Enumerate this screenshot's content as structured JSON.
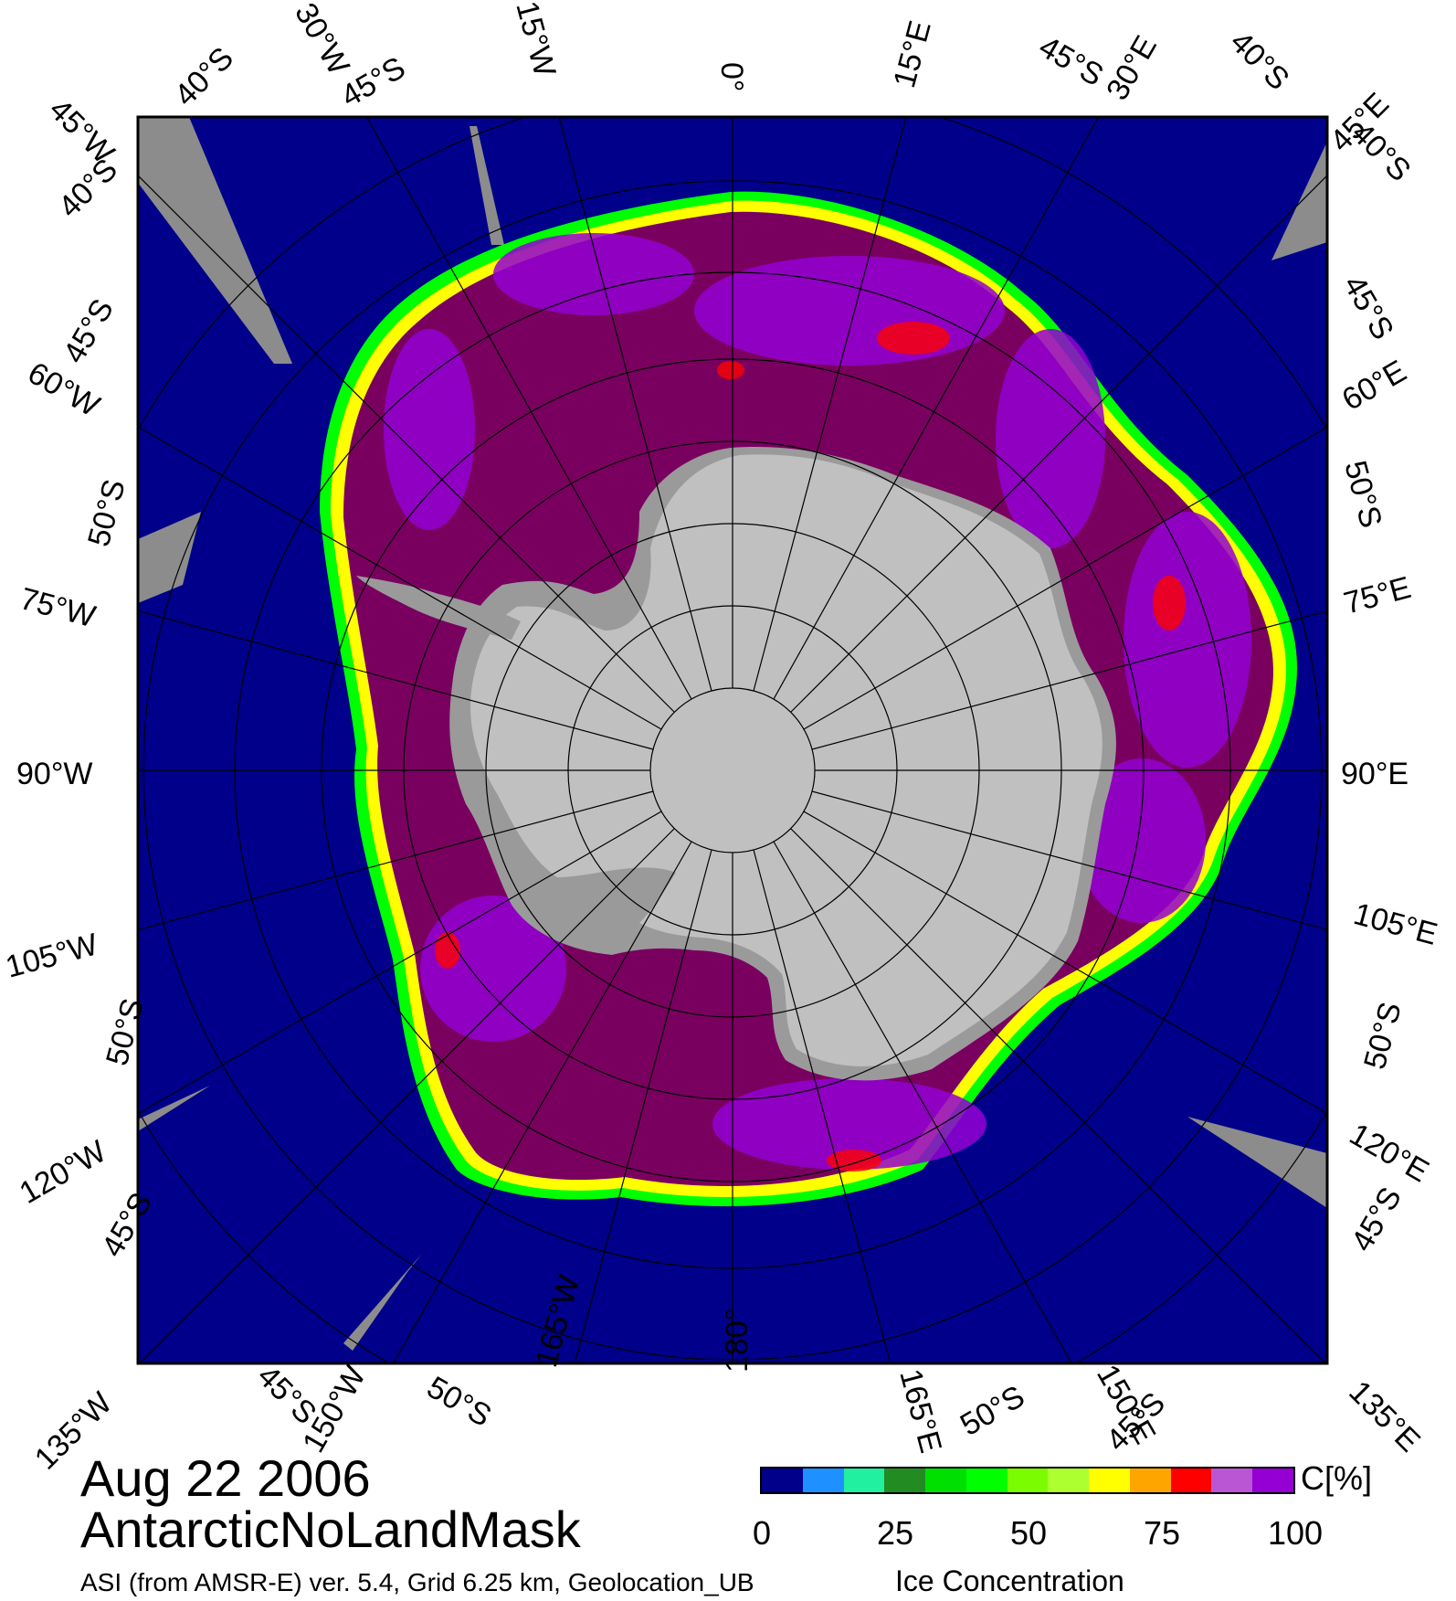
{
  "map": {
    "projection": "south-polar-stereographic",
    "background_color": "#ffffff",
    "ocean_color": "#00008b",
    "land_color": "#c0c0c0",
    "ice_shelf_color": "#9a9a9a",
    "missing_data_color": "#8c8c8c",
    "graticule_color": "#000000",
    "meridian_labels": {
      "top": [
        "30°W",
        "15°W",
        "0°",
        "15°E",
        "30°E"
      ],
      "bottom": [
        "165°W",
        "180°",
        "165°E"
      ],
      "left": [
        "60°W",
        "75°W",
        "90°W",
        "105°W",
        "120°W"
      ],
      "right": [
        "60°E",
        "75°E",
        "90°E",
        "105°E",
        "120°E"
      ],
      "corners": [
        "45°W",
        "45°E",
        "135°W",
        "135°E"
      ],
      "clipped": [
        "150°W",
        "150°E"
      ]
    },
    "parallel_labels": {
      "top": [
        "40°S",
        "45°S",
        "45°S",
        "40°S"
      ],
      "left": [
        "40°S",
        "45°S",
        "50°S",
        "50°S",
        "45°S"
      ],
      "right": [
        "40°S",
        "45°S",
        "50°S",
        "50°S",
        "45°S"
      ],
      "bottom": [
        "45°S",
        "50°S",
        "50°S",
        "45°S"
      ]
    }
  },
  "title": {
    "date": "Aug 22 2006",
    "dataset": "AntarcticNoLandMask"
  },
  "footer": {
    "source": "ASI (from AMSR-E) ver. 5.4,  Grid 6.25 km, Geolocation_UB",
    "variable": "Ice Concentration"
  },
  "colorbar": {
    "unit": "C[%]",
    "ticks": [
      "0",
      "25",
      "50",
      "75",
      "100"
    ],
    "range": [
      0,
      100
    ],
    "colors": [
      "#00008b",
      "#1e90ff",
      "#20f0a0",
      "#228b22",
      "#00e000",
      "#00ff00",
      "#7cfc00",
      "#adff2f",
      "#ffff00",
      "#ffa500",
      "#ff0000",
      "#ba55d3",
      "#9400d3"
    ]
  },
  "sea_ice_colors": {
    "edge_low": "#00ff00",
    "edge_mid": "#ffff00",
    "pack_mid": "#ff0000",
    "pack_high": "#9400d3",
    "pack_full": "#7a0060"
  }
}
